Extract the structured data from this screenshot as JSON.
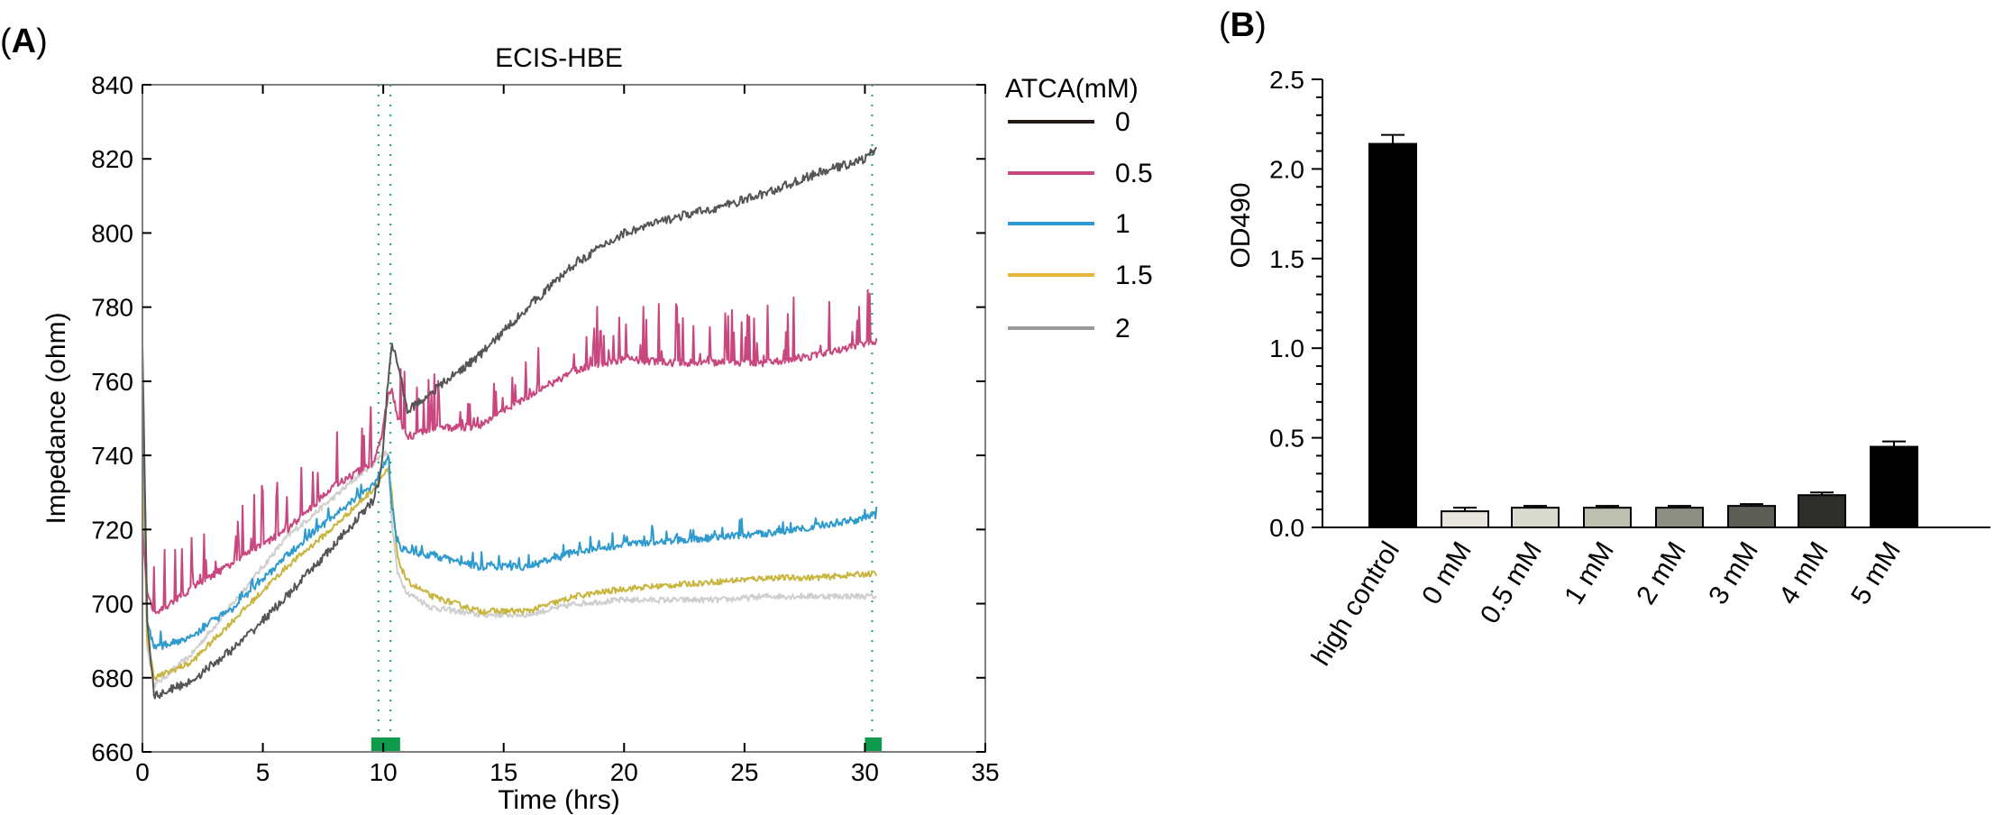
{
  "panel_a": {
    "label_open": "(",
    "label_letter": "A",
    "label_close": ")",
    "chart_data": {
      "type": "line",
      "title": "ECIS-HBE",
      "xlabel": "Time (hrs)",
      "ylabel": "Impedance (ohm)",
      "xlim": [
        0,
        35
      ],
      "ylim": [
        660,
        840
      ],
      "xticks": [
        0,
        5,
        10,
        15,
        20,
        25,
        30,
        35
      ],
      "yticks": [
        660,
        680,
        700,
        720,
        740,
        760,
        780,
        800,
        820,
        840
      ],
      "legend_title": "ATCA(mM)",
      "legend_position": "right",
      "vlines": [
        9.8,
        10.3,
        30.3
      ],
      "markers": [
        {
          "start": 9.5,
          "end": 10.7
        },
        {
          "start": 30.0,
          "end": 30.7
        }
      ],
      "series": [
        {
          "name": "0",
          "label": "0",
          "color": "#555555",
          "legend_color": "#231815",
          "noise": 1.2,
          "spikes": 0,
          "points": [
            [
              0,
              770
            ],
            [
              0.2,
              695
            ],
            [
              0.5,
              675
            ],
            [
              2,
              679
            ],
            [
              4,
              689
            ],
            [
              6,
              702
            ],
            [
              8,
              716
            ],
            [
              9.6,
              728
            ],
            [
              9.9,
              735
            ],
            [
              10.2,
              760
            ],
            [
              10.35,
              770
            ],
            [
              10.6,
              765
            ],
            [
              11,
              752
            ],
            [
              12,
              757
            ],
            [
              14,
              767
            ],
            [
              16,
              780
            ],
            [
              18,
              792
            ],
            [
              20,
              800
            ],
            [
              22,
              804
            ],
            [
              24,
              807
            ],
            [
              26,
              811
            ],
            [
              28,
              816
            ],
            [
              30,
              820
            ],
            [
              30.5,
              823
            ]
          ]
        },
        {
          "name": "0.5",
          "label": "0.5",
          "color": "#C9477F",
          "legend_color": "#C9477F",
          "noise": 1.0,
          "spikes": 16,
          "points": [
            [
              0,
              720
            ],
            [
              0.2,
              703
            ],
            [
              0.5,
              697
            ],
            [
              2,
              704
            ],
            [
              4,
              712
            ],
            [
              6,
              720
            ],
            [
              8,
              732
            ],
            [
              9.6,
              738
            ],
            [
              9.9,
              744
            ],
            [
              10.2,
              756
            ],
            [
              10.35,
              758
            ],
            [
              10.6,
              750
            ],
            [
              11,
              745
            ],
            [
              12,
              747
            ],
            [
              14,
              748
            ],
            [
              16,
              756
            ],
            [
              18,
              763
            ],
            [
              20,
              766
            ],
            [
              22,
              765
            ],
            [
              24,
              765
            ],
            [
              26,
              765
            ],
            [
              28,
              767
            ],
            [
              30,
              770
            ],
            [
              30.5,
              771
            ]
          ]
        },
        {
          "name": "1",
          "label": "1",
          "color": "#2E9ACD",
          "legend_color": "#2E9ACD",
          "noise": 1.0,
          "spikes": 4,
          "points": [
            [
              0,
              765
            ],
            [
              0.2,
              695
            ],
            [
              0.5,
              688
            ],
            [
              2,
              691
            ],
            [
              4,
              700
            ],
            [
              6,
              713
            ],
            [
              8,
              724
            ],
            [
              9.6,
              732
            ],
            [
              9.9,
              736
            ],
            [
              10.2,
              740
            ],
            [
              10.35,
              726
            ],
            [
              10.6,
              716
            ],
            [
              11,
              714
            ],
            [
              12,
              713
            ],
            [
              14,
              710
            ],
            [
              16,
              710
            ],
            [
              18,
              714
            ],
            [
              20,
              716
            ],
            [
              22,
              717
            ],
            [
              24,
              718
            ],
            [
              26,
              719
            ],
            [
              28,
              721
            ],
            [
              30,
              723
            ],
            [
              30.5,
              724
            ]
          ]
        },
        {
          "name": "1.5",
          "label": "1.5",
          "color": "#C8B640",
          "legend_color": "#E8B43A",
          "noise": 0.8,
          "spikes": 0,
          "points": [
            [
              0,
              745
            ],
            [
              0.2,
              690
            ],
            [
              0.5,
              680
            ],
            [
              2,
              684
            ],
            [
              4,
              697
            ],
            [
              6,
              710
            ],
            [
              8,
              721
            ],
            [
              9.6,
              731
            ],
            [
              9.9,
              734
            ],
            [
              10.2,
              736
            ],
            [
              10.35,
              730
            ],
            [
              10.6,
              712
            ],
            [
              11,
              706
            ],
            [
              12,
              702
            ],
            [
              14,
              698
            ],
            [
              16,
              698
            ],
            [
              18,
              702
            ],
            [
              20,
              704
            ],
            [
              22,
              705
            ],
            [
              24,
              706
            ],
            [
              26,
              707
            ],
            [
              28,
              707
            ],
            [
              30,
              708
            ],
            [
              30.5,
              708
            ]
          ]
        },
        {
          "name": "2",
          "label": "2",
          "color": "#CFCFCF",
          "legend_color": "#9A9A9A",
          "noise": 0.8,
          "spikes": 0,
          "points": [
            [
              0,
              740
            ],
            [
              0.2,
              688
            ],
            [
              0.5,
              678
            ],
            [
              2,
              686
            ],
            [
              4,
              702
            ],
            [
              6,
              718
            ],
            [
              8,
              729
            ],
            [
              9.6,
              738
            ],
            [
              9.9,
              740
            ],
            [
              10.2,
              741
            ],
            [
              10.35,
              722
            ],
            [
              10.6,
              708
            ],
            [
              11,
              703
            ],
            [
              12,
              699
            ],
            [
              14,
              697
            ],
            [
              16,
              697
            ],
            [
              18,
              700
            ],
            [
              20,
              701
            ],
            [
              22,
              701
            ],
            [
              24,
              701
            ],
            [
              26,
              702
            ],
            [
              28,
              702
            ],
            [
              30,
              702
            ],
            [
              30.5,
              702
            ]
          ]
        }
      ]
    }
  },
  "panel_b": {
    "label_open": "(",
    "label_letter": "B",
    "label_close": ")",
    "chart_data": {
      "type": "bar",
      "ylabel": "OD490",
      "xlabel": "",
      "ylim": [
        0,
        2.5
      ],
      "yticks": [
        0.0,
        0.5,
        1.0,
        1.5,
        2.0,
        2.5
      ],
      "ytick_labels": [
        "0.0",
        "0.5",
        "1.0",
        "1.5",
        "2.0",
        "2.5"
      ],
      "minor_ticks": [
        0.1,
        0.2,
        0.3,
        0.4,
        0.6,
        0.7,
        0.8,
        0.9,
        1.1,
        1.2,
        1.3,
        1.4,
        1.6,
        1.7,
        1.8,
        1.9,
        2.1,
        2.2,
        2.3,
        2.4
      ],
      "categories": [
        "high control",
        "0 mM",
        "0.5 mM",
        "1 mM",
        "2 mM",
        "3 mM",
        "4 mM",
        "5 mM"
      ],
      "values": [
        2.14,
        0.09,
        0.11,
        0.11,
        0.11,
        0.12,
        0.18,
        0.45
      ],
      "errors": [
        0.05,
        0.02,
        0.01,
        0.01,
        0.01,
        0.01,
        0.015,
        0.03
      ],
      "colors": [
        "#000000",
        "#E6E6DE",
        "#D9DBCF",
        "#BDBFB1",
        "#8E8F84",
        "#5C5E56",
        "#2E2F2A",
        "#000000"
      ]
    }
  }
}
